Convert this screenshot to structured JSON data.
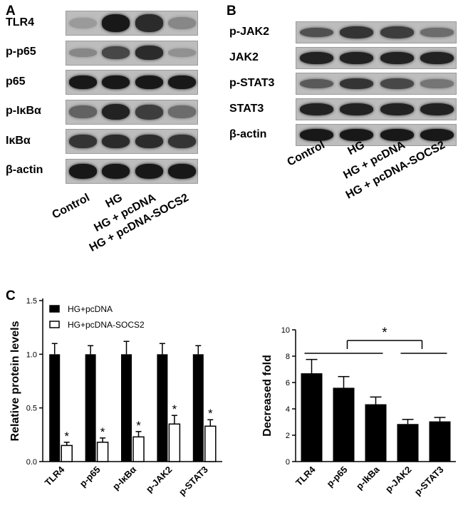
{
  "panels": {
    "A": "A",
    "B": "B",
    "C": "C"
  },
  "blots_A": {
    "rows": [
      {
        "label": "TLR4",
        "intensity": [
          0.25,
          0.95,
          0.85,
          0.35
        ],
        "thickness": [
          0.45,
          0.7,
          0.7,
          0.5
        ]
      },
      {
        "label": "p-p65",
        "intensity": [
          0.35,
          0.7,
          0.85,
          0.3
        ],
        "thickness": [
          0.35,
          0.5,
          0.55,
          0.35
        ]
      },
      {
        "label": "p65",
        "intensity": [
          0.95,
          0.95,
          0.95,
          0.95
        ],
        "thickness": [
          0.55,
          0.55,
          0.55,
          0.55
        ]
      },
      {
        "label": "p-IκBα",
        "intensity": [
          0.55,
          0.9,
          0.75,
          0.5
        ],
        "thickness": [
          0.5,
          0.65,
          0.6,
          0.5
        ]
      },
      {
        "label": "IκBα",
        "intensity": [
          0.8,
          0.85,
          0.85,
          0.8
        ],
        "thickness": [
          0.55,
          0.55,
          0.55,
          0.55
        ]
      },
      {
        "label": "β-actin",
        "intensity": [
          0.95,
          0.95,
          0.95,
          0.95
        ],
        "thickness": [
          0.6,
          0.6,
          0.6,
          0.6
        ]
      }
    ],
    "lanes": [
      "Control",
      "HG",
      "HG + pcDNA",
      "HG + pcDNA-SOCS2"
    ]
  },
  "blots_B": {
    "rows": [
      {
        "label": "p-JAK2",
        "intensity": [
          0.65,
          0.8,
          0.75,
          0.5
        ],
        "thickness": [
          0.45,
          0.55,
          0.55,
          0.4
        ]
      },
      {
        "label": "JAK2",
        "intensity": [
          0.9,
          0.9,
          0.9,
          0.9
        ],
        "thickness": [
          0.55,
          0.55,
          0.55,
          0.55
        ]
      },
      {
        "label": "p-STAT3",
        "intensity": [
          0.6,
          0.8,
          0.7,
          0.45
        ],
        "thickness": [
          0.45,
          0.5,
          0.5,
          0.4
        ]
      },
      {
        "label": "STAT3",
        "intensity": [
          0.9,
          0.9,
          0.9,
          0.9
        ],
        "thickness": [
          0.55,
          0.55,
          0.55,
          0.55
        ]
      },
      {
        "label": "β-actin",
        "intensity": [
          0.95,
          0.95,
          0.95,
          0.95
        ],
        "thickness": [
          0.55,
          0.55,
          0.55,
          0.55
        ]
      }
    ],
    "lanes": [
      "Control",
      "HG",
      "HG + pcDNA",
      "HG + pcDNA-SOCS2"
    ]
  },
  "chart_data": [
    {
      "type": "bar",
      "categories": [
        "TLR4",
        "p-p65",
        "p-IκBα",
        "p-JAK2",
        "p-STAT3"
      ],
      "series": [
        {
          "name": "HG+pcDNA",
          "values": [
            1.0,
            1.0,
            1.0,
            1.0,
            1.0
          ],
          "errors": [
            0.1,
            0.08,
            0.12,
            0.1,
            0.08
          ],
          "color": "#000000"
        },
        {
          "name": "HG+pcDNA-SOCS2",
          "values": [
            0.15,
            0.18,
            0.23,
            0.35,
            0.33
          ],
          "errors": [
            0.03,
            0.04,
            0.05,
            0.08,
            0.06
          ],
          "color": "#ffffff"
        }
      ],
      "significance": [
        "*",
        "*",
        "*",
        "*",
        "*"
      ],
      "ylabel": "Relative protein levels",
      "ylim": [
        0,
        1.5
      ],
      "yticks": [
        "0.0",
        "0.5",
        "1.0",
        "1.5"
      ],
      "legend_position": "top-left"
    },
    {
      "type": "bar",
      "categories": [
        "TLR4",
        "p-p65",
        "p-IkBa",
        "p-JAK2",
        "p-STAT3"
      ],
      "values": [
        6.7,
        5.6,
        4.35,
        2.85,
        3.05
      ],
      "errors": [
        1.05,
        0.85,
        0.55,
        0.35,
        0.3
      ],
      "ylabel": "Decreased fold",
      "ylim": [
        0,
        10
      ],
      "yticks": [
        "0",
        "2",
        "4",
        "6",
        "8",
        "10"
      ],
      "significance": "*",
      "color": "#000000"
    }
  ]
}
